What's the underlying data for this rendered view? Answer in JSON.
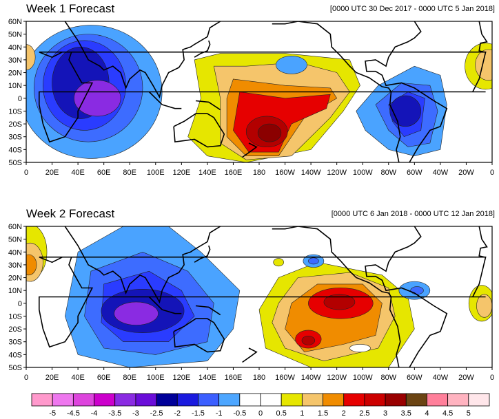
{
  "panels": [
    {
      "title": "Week 1 Forecast",
      "date_range": "[0000 UTC 30 Dec 2017 - 0000 UTC 5 Jan 2018]",
      "lat_labels": [
        "60N",
        "50N",
        "40N",
        "30N",
        "20N",
        "10N",
        "0",
        "10S",
        "20S",
        "30S",
        "40S",
        "50S"
      ],
      "lon_labels": [
        "0",
        "20E",
        "40E",
        "60E",
        "80E",
        "100E",
        "120E",
        "140E",
        "160E",
        "180",
        "160W",
        "140W",
        "120W",
        "100W",
        "80W",
        "60W",
        "40W",
        "20W",
        "0"
      ]
    },
    {
      "title": "Week 2 Forecast",
      "date_range": "[0000 UTC 6 Jan 2018 - 0000 UTC 12 Jan 2018]",
      "lat_labels": [
        "60N",
        "50N",
        "40N",
        "30N",
        "20N",
        "10N",
        "0",
        "10S",
        "20S",
        "30S",
        "40S",
        "50S"
      ],
      "lon_labels": [
        "0",
        "20E",
        "40E",
        "60E",
        "80E",
        "100E",
        "120E",
        "140E",
        "160E",
        "180",
        "160W",
        "140W",
        "120W",
        "100W",
        "80W",
        "60W",
        "40W",
        "20W",
        "0"
      ]
    }
  ],
  "colorbar": {
    "labels": [
      "-5",
      "-4.5",
      "-4",
      "-3.5",
      "-3",
      "-2.5",
      "-2",
      "-1.5",
      "-1",
      "-0.5",
      "0",
      "0.5",
      "1",
      "1.5",
      "2",
      "2.5",
      "3",
      "3.5",
      "4",
      "4.5",
      "5"
    ],
    "colors": [
      "#ff99cc",
      "#ee77ee",
      "#dd44dd",
      "#cc00cc",
      "#8a2be2",
      "#6a0dd9",
      "#000099",
      "#1a1adf",
      "#3c5fff",
      "#4da6ff",
      "#ffffff",
      "#ffffff",
      "#e6e600",
      "#f5c56b",
      "#f08c00",
      "#e60000",
      "#cc0000",
      "#990000",
      "#6b4413",
      "#ff7f9a",
      "#ffb3c0",
      "#ffe6ea"
    ]
  },
  "palette": {
    "purple": "#8a2be2",
    "deep_blue": "#1414b8",
    "blue": "#2a3cff",
    "mid_blue": "#3d6cff",
    "light_blue": "#4aa3ff",
    "yellow": "#e6e600",
    "light_orange": "#f5c56b",
    "orange": "#f08c00",
    "red": "#e60000",
    "dark_red": "#b30000",
    "maroon": "#8b0000"
  }
}
